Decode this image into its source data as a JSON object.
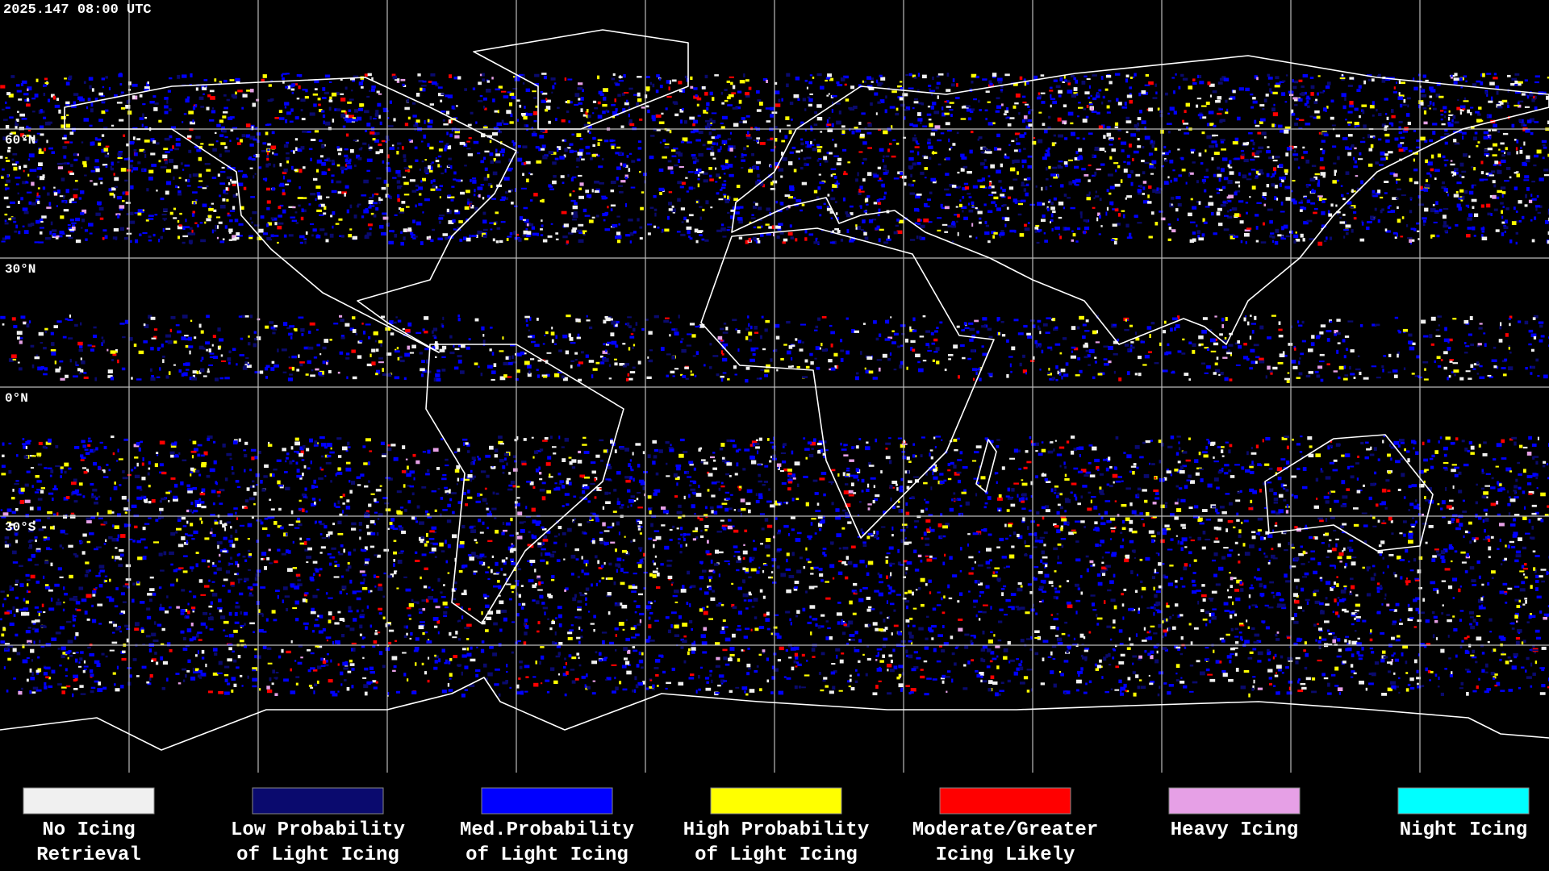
{
  "timestamp": "2025.147 08:00 UTC",
  "latitude_labels": [
    "60°N",
    "30°N",
    "0°N",
    "30°S"
  ],
  "legend": [
    {
      "color": "#f0f0f0",
      "lines": [
        "No Icing",
        "Retrieval"
      ]
    },
    {
      "color": "#0a0a6e",
      "lines": [
        "Low Probability",
        "of Light Icing"
      ]
    },
    {
      "color": "#0000ff",
      "lines": [
        "Med.Probability",
        "of Light Icing"
      ]
    },
    {
      "color": "#ffff00",
      "lines": [
        "High Probability",
        "of Light Icing"
      ]
    },
    {
      "color": "#ff0000",
      "lines": [
        "Moderate/Greater",
        "Icing Likely"
      ]
    },
    {
      "color": "#e6a0e6",
      "lines": [
        "Heavy Icing"
      ]
    },
    {
      "color": "#00ffff",
      "lines": [
        "Night Icing"
      ]
    }
  ]
}
